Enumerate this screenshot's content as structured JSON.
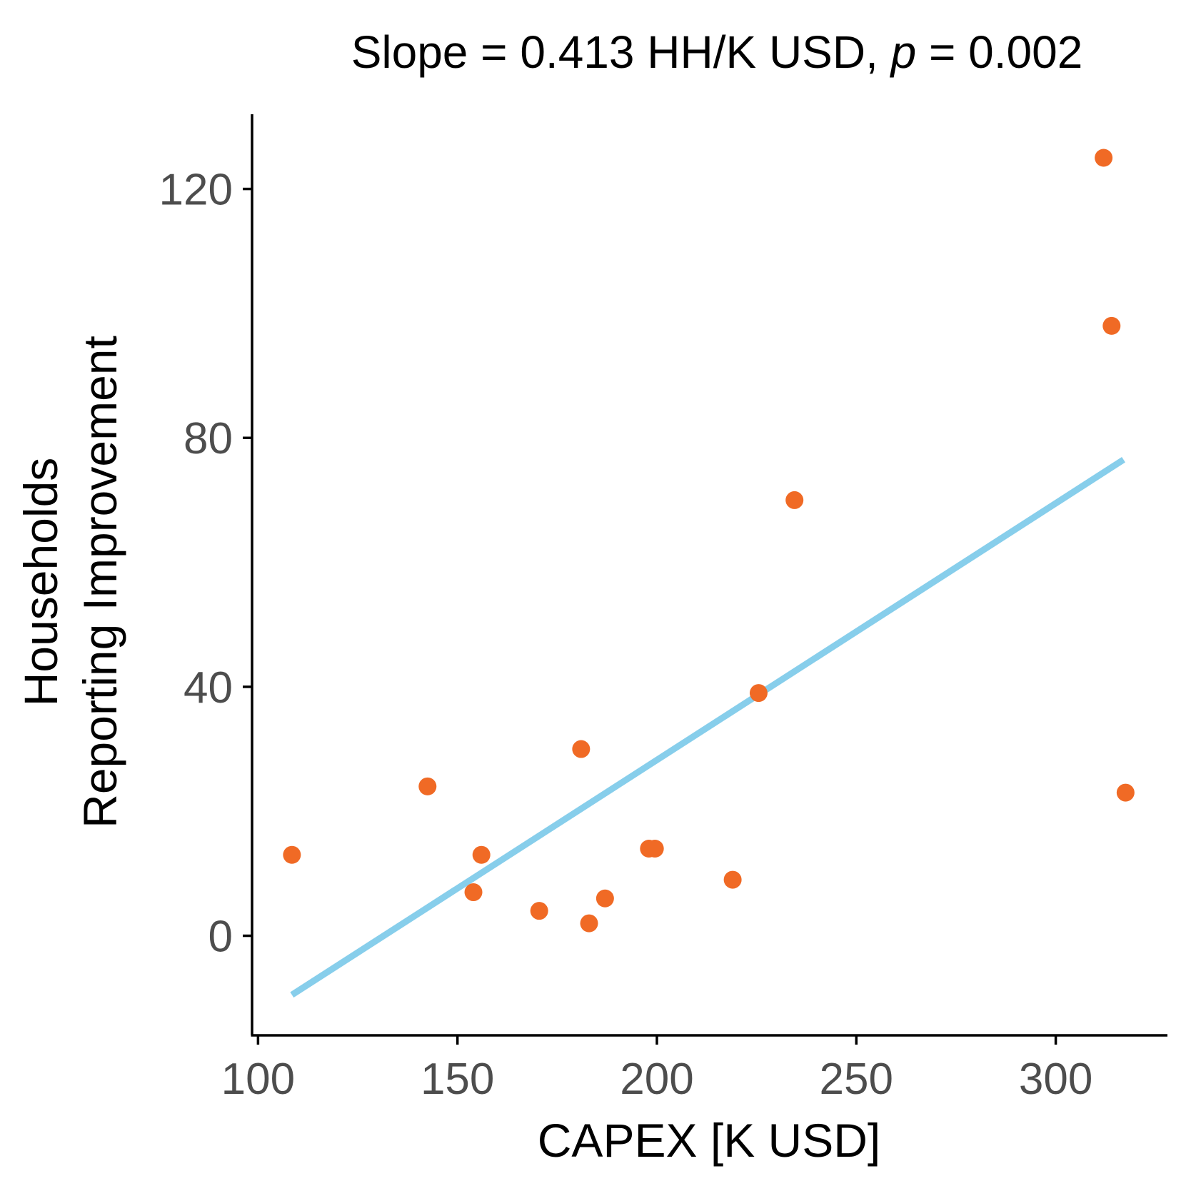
{
  "chart_data": {
    "type": "scatter",
    "title": {
      "prefix": "Slope = 0.413  HH/K  USD, ",
      "italic": "p",
      "suffix": " = 0.002"
    },
    "xlabel": "CAPEX [K USD]",
    "ylabel": [
      "Households",
      "Reporting Improvement"
    ],
    "xlim": [
      98.5,
      328
    ],
    "ylim": [
      -16,
      132
    ],
    "xticks": [
      100,
      150,
      200,
      250,
      300
    ],
    "yticks": [
      0,
      40,
      80,
      120
    ],
    "grid": false,
    "point_color": "#F06A25",
    "line_color": "#87CEEB",
    "points": [
      {
        "x": 108.5,
        "y": 13
      },
      {
        "x": 142.5,
        "y": 24
      },
      {
        "x": 154,
        "y": 7
      },
      {
        "x": 156,
        "y": 13
      },
      {
        "x": 170.5,
        "y": 4
      },
      {
        "x": 181,
        "y": 30
      },
      {
        "x": 183,
        "y": 2
      },
      {
        "x": 187,
        "y": 6
      },
      {
        "x": 198,
        "y": 14
      },
      {
        "x": 199.5,
        "y": 14
      },
      {
        "x": 219,
        "y": 9
      },
      {
        "x": 225.5,
        "y": 39
      },
      {
        "x": 234.5,
        "y": 70
      },
      {
        "x": 312,
        "y": 125
      },
      {
        "x": 314,
        "y": 98
      },
      {
        "x": 317.5,
        "y": 23
      }
    ],
    "trend_line": {
      "slope": 0.413,
      "x": [
        108.5,
        317
      ],
      "y": [
        -9.5,
        76.5
      ]
    }
  }
}
